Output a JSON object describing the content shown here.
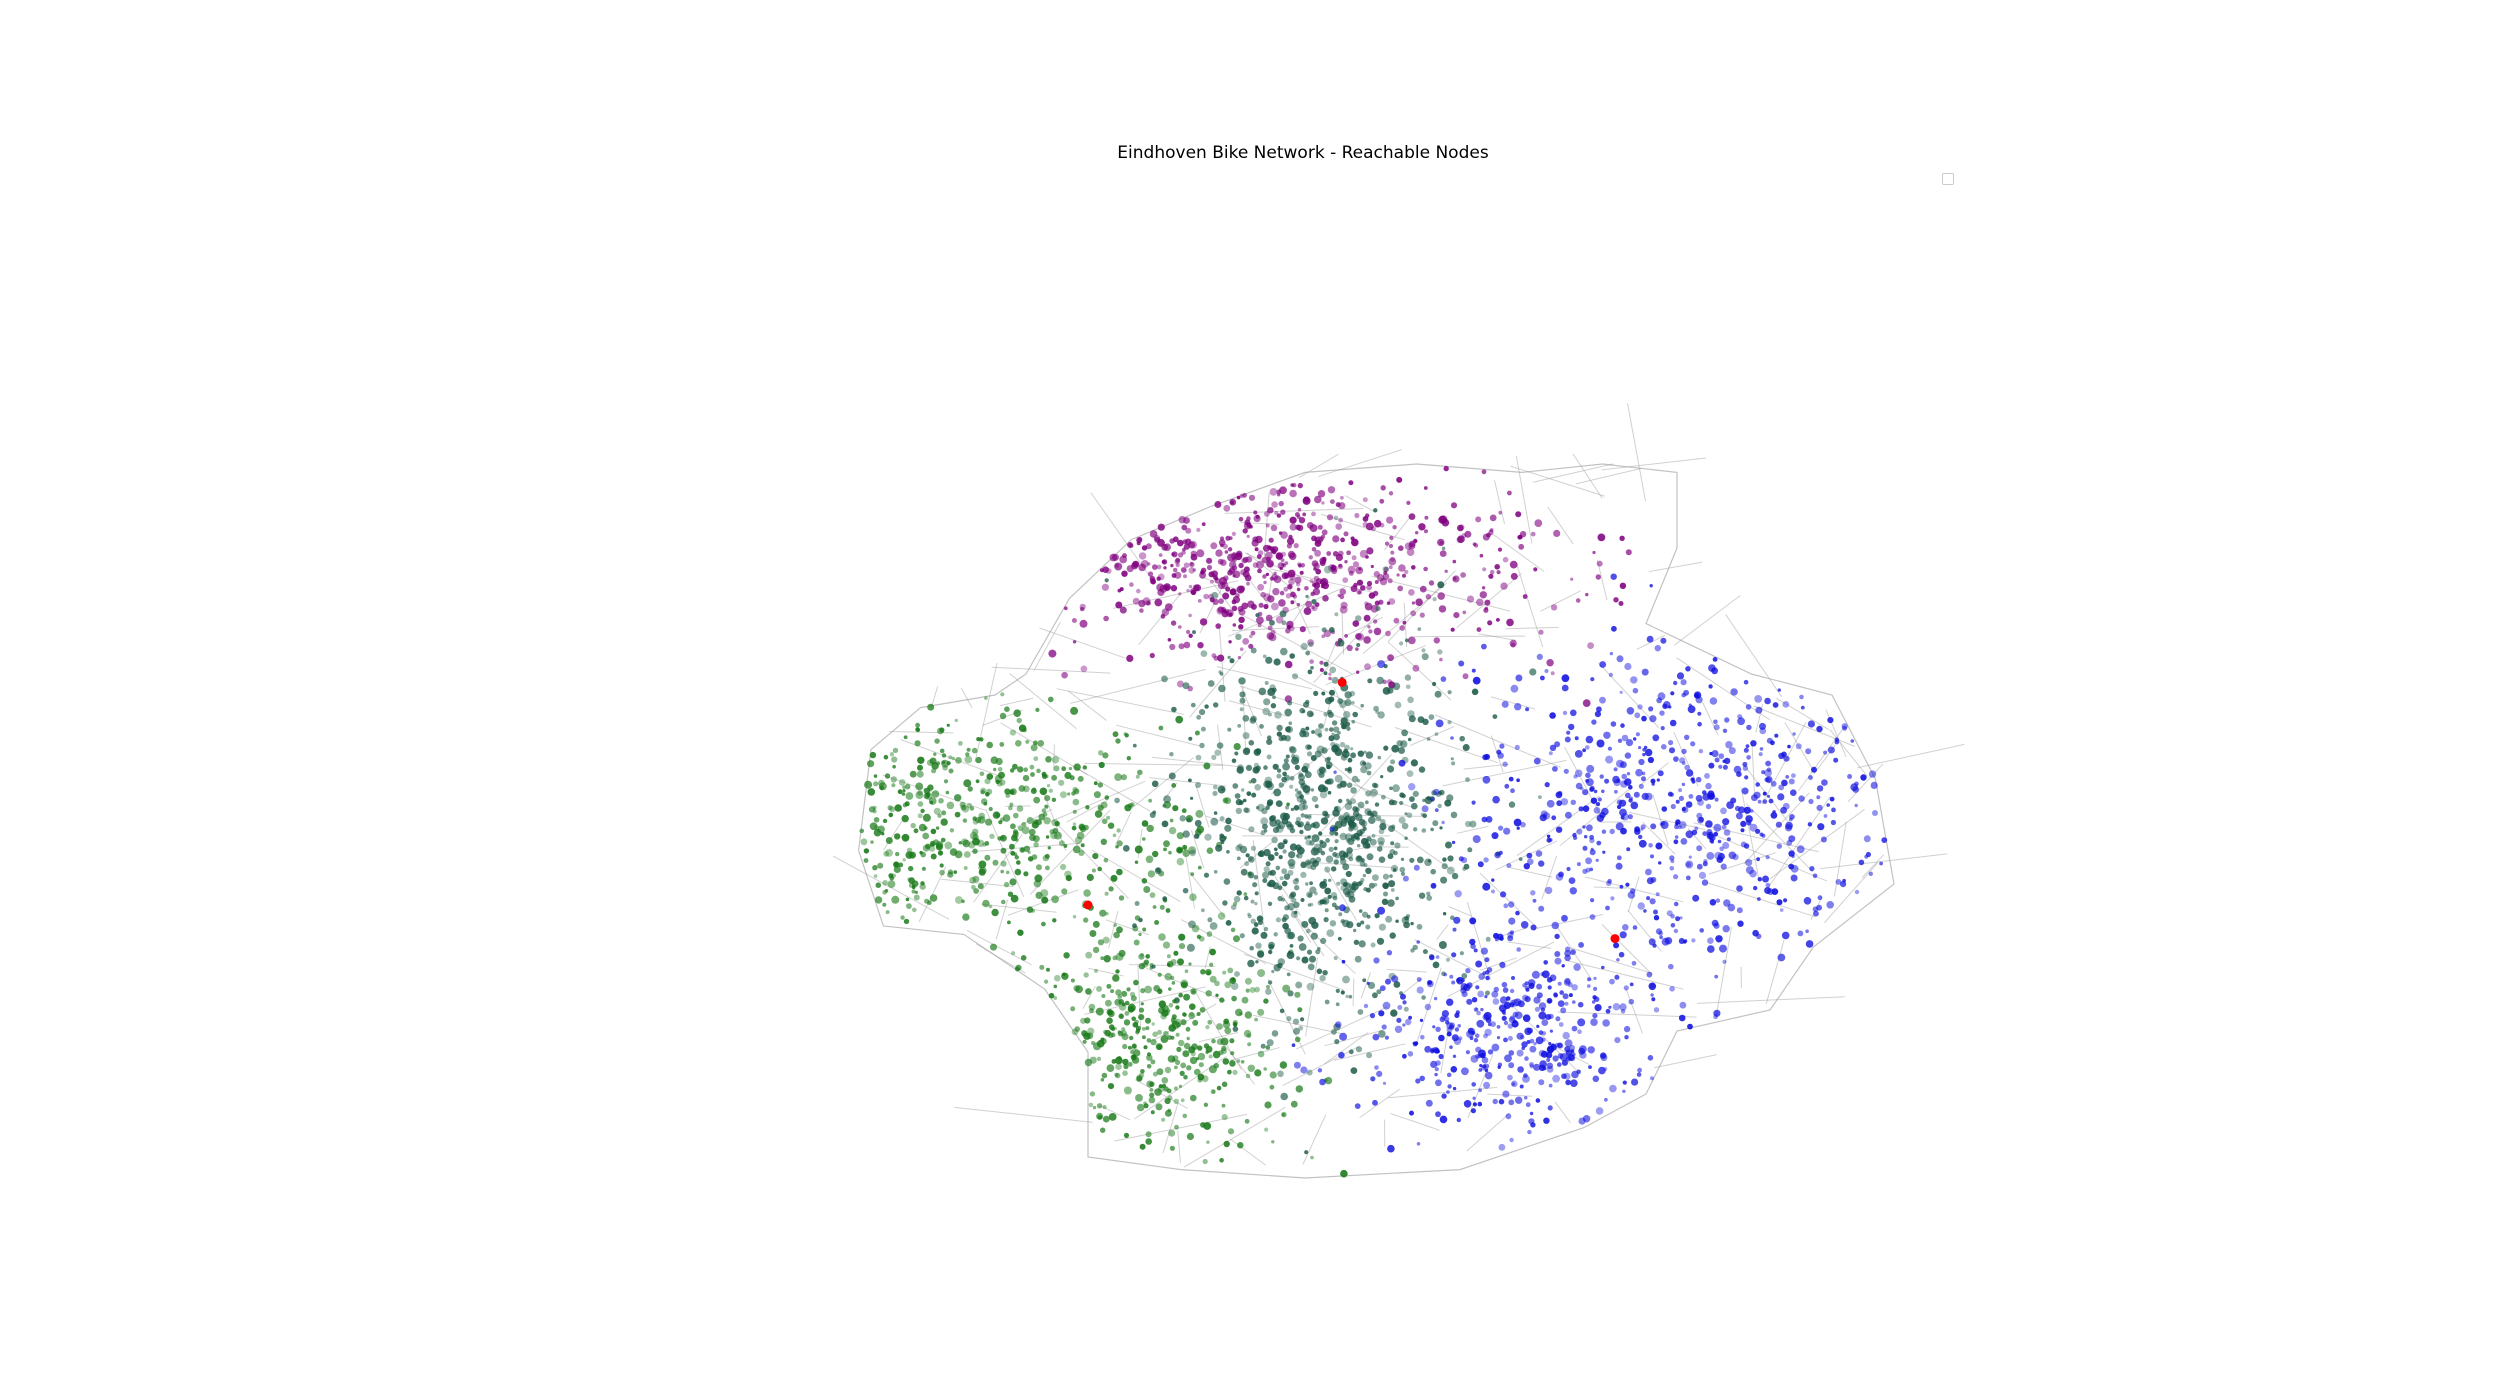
{
  "title": "Eindhoven Bike Network - Reachable Nodes",
  "colors": {
    "background": "#ffffff",
    "street": "#9a9a9a",
    "zone_north": "#800080",
    "zone_west": "#1a7a1a",
    "zone_center": "#1e5c4a",
    "zone_east": "#1010e0",
    "origin_marker": "#ff0000"
  },
  "legend": {
    "entries": []
  },
  "zones": [
    {
      "id": "north",
      "color_key": "zone_north",
      "center": [
        -0.05,
        0.55
      ],
      "spread": [
        0.42,
        0.22
      ],
      "count": 650
    },
    {
      "id": "west",
      "color_key": "zone_west",
      "center": [
        -0.55,
        -0.05
      ],
      "spread": [
        0.38,
        0.28
      ],
      "count": 520
    },
    {
      "id": "southwest",
      "color_key": "zone_west",
      "center": [
        -0.25,
        -0.55
      ],
      "spread": [
        0.22,
        0.25
      ],
      "count": 420
    },
    {
      "id": "center",
      "color_key": "zone_center",
      "center": [
        0.02,
        -0.05
      ],
      "spread": [
        0.22,
        0.45
      ],
      "count": 900
    },
    {
      "id": "east",
      "color_key": "zone_east",
      "center": [
        0.6,
        -0.02
      ],
      "spread": [
        0.35,
        0.4
      ],
      "count": 650
    },
    {
      "id": "southeast",
      "color_key": "zone_east",
      "center": [
        0.32,
        -0.55
      ],
      "spread": [
        0.25,
        0.22
      ],
      "count": 420
    }
  ],
  "origins": [
    {
      "id": "origin-north",
      "lon": 0.06,
      "lat": 0.28
    },
    {
      "id": "origin-west",
      "lon": -0.35,
      "lat": -0.25
    },
    {
      "id": "origin-east",
      "lon": 0.5,
      "lat": -0.33
    }
  ]
}
